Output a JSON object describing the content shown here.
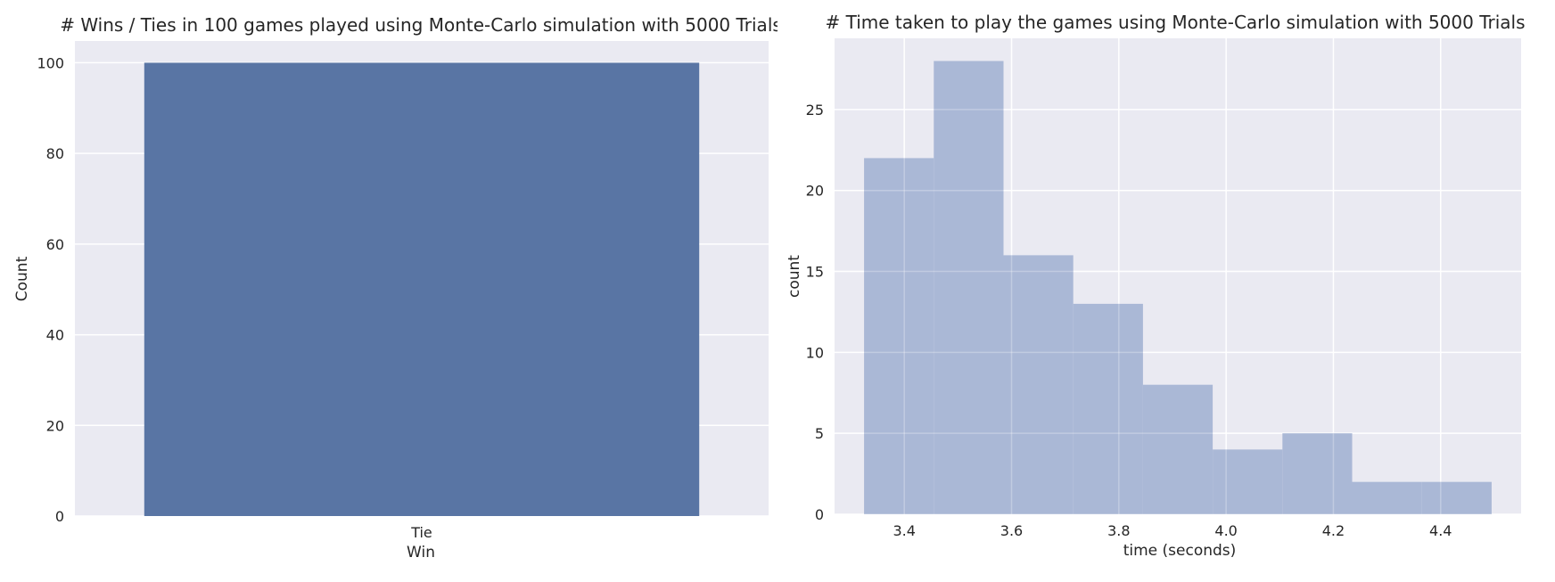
{
  "chart_data": [
    {
      "type": "bar",
      "title": "# Wins / Ties in 100 games played using Monte-Carlo simulation with 5000 Trials",
      "xlabel": "Win",
      "ylabel": "Count",
      "categories": [
        "Tie"
      ],
      "values": [
        100
      ],
      "ylim": [
        0,
        104.8
      ],
      "yticks": [
        0,
        20,
        40,
        60,
        80,
        100
      ],
      "grid": true,
      "colors": {
        "bar": "#5975a4",
        "background": "#eaeaf2",
        "grid": "#ffffff"
      }
    },
    {
      "type": "histogram",
      "title": "# Time taken to play the games using Monte-Carlo simulation with 5000 Trials",
      "xlabel": "time (seconds)",
      "ylabel": "count",
      "bin_edges": [
        3.325,
        3.455,
        3.585,
        3.715,
        3.845,
        3.975,
        4.105,
        4.235,
        4.365,
        4.495
      ],
      "counts": [
        22,
        28,
        16,
        13,
        8,
        4,
        5,
        2,
        2
      ],
      "xlim": [
        3.27,
        4.55
      ],
      "ylim": [
        0,
        29.4
      ],
      "xticks": [
        3.4,
        3.6,
        3.8,
        4.0,
        4.2,
        4.4
      ],
      "xtick_labels": [
        "3.4",
        "3.6",
        "3.8",
        "4.0",
        "4.2",
        "4.4"
      ],
      "yticks": [
        0,
        5,
        10,
        15,
        20,
        25
      ],
      "grid": true,
      "colors": {
        "bar": "#aab8d6",
        "background": "#eaeaf2",
        "grid": "#ffffff"
      }
    }
  ]
}
